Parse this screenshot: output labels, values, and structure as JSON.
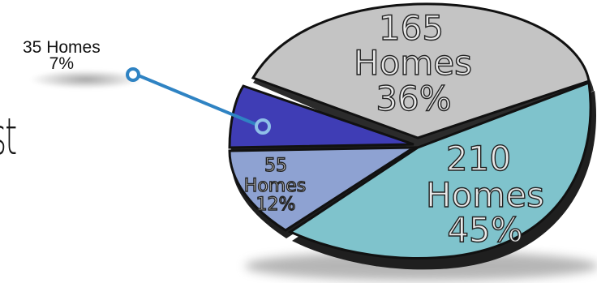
{
  "page": {
    "partial_word": "st"
  },
  "callout": {
    "line1": "35 Homes",
    "line2": "7%"
  },
  "chart_data": {
    "type": "pie",
    "title": "",
    "slices": [
      {
        "homes": "165",
        "unit": "Homes",
        "percent": "36%",
        "value": 165,
        "color": "#c4c4c4"
      },
      {
        "homes": "210",
        "unit": "Homes",
        "percent": "45%",
        "value": 210,
        "color": "#7fc3cc"
      },
      {
        "homes": "55",
        "unit": "Homes",
        "percent": "12%",
        "value": 55,
        "color": "#8ea2d2"
      },
      {
        "homes": "35",
        "unit": "Homes",
        "percent": "7%",
        "value": 35,
        "color": "#3f3db5"
      }
    ],
    "legend": "none",
    "callout_color": "#2f83c3"
  }
}
